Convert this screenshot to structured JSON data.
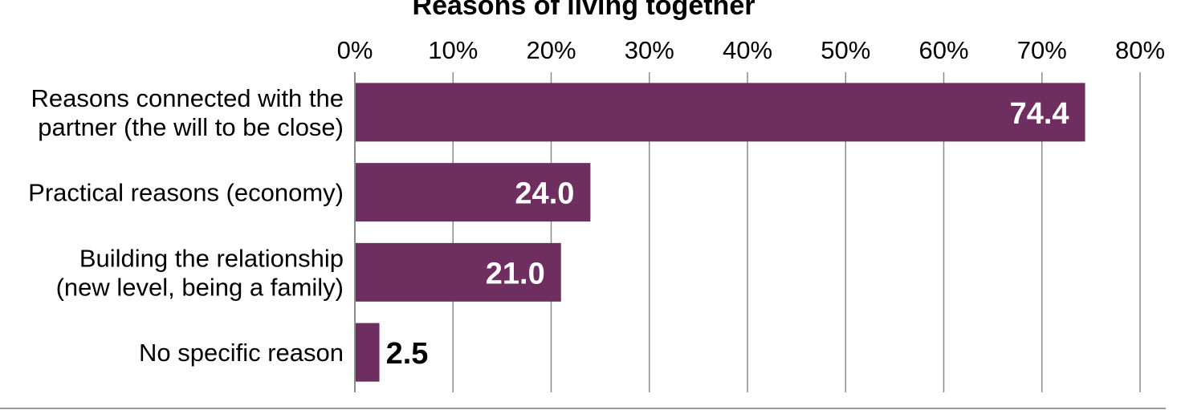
{
  "chart_data": {
    "type": "bar",
    "orientation": "horizontal",
    "title": "Reasons of living together",
    "categories": [
      [
        "Reasons connected with the",
        "partner (the will to be close)"
      ],
      [
        "Practical reasons (economy)"
      ],
      [
        "Building the relationship",
        "(new level, being a family)"
      ],
      [
        "No specific reason"
      ]
    ],
    "values": [
      74.4,
      24.0,
      21.0,
      2.5
    ],
    "value_labels": [
      "74.4",
      "24.0",
      "21.0",
      "2.5"
    ],
    "xlim": [
      0,
      80
    ],
    "xticks": [
      "0%",
      "10%",
      "20%",
      "30%",
      "40%",
      "50%",
      "60%",
      "70%",
      "80%"
    ],
    "xtick_values": [
      0,
      10,
      20,
      30,
      40,
      50,
      60,
      70,
      80
    ],
    "x_axis_position": "top",
    "grid": true,
    "legend": "none",
    "colors": {
      "bar": "#6e2f60",
      "label_inside": "#ffffff",
      "label_outside": "#000000"
    }
  }
}
